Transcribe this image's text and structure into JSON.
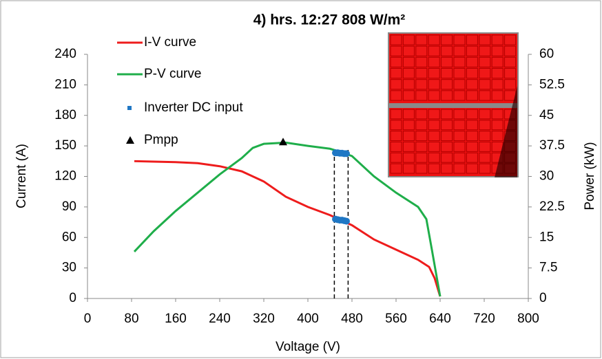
{
  "chart_data": {
    "type": "line",
    "title": "4) hrs. 12:27  808 W/m²",
    "x_label": "Voltage (V)",
    "y_label": "Current (A)",
    "y2_label": "Power (kW)",
    "xlim": [
      0,
      800
    ],
    "xticks": [
      0,
      80,
      160,
      240,
      320,
      400,
      480,
      560,
      640,
      720,
      800
    ],
    "ylim": [
      0,
      240
    ],
    "yticks": [
      0,
      30,
      60,
      90,
      120,
      150,
      180,
      210,
      240
    ],
    "y2lim": [
      0,
      60
    ],
    "y2ticks": [
      0,
      7.5,
      15,
      22.5,
      30,
      37.5,
      45,
      52.5,
      60
    ],
    "series": [
      {
        "name": "I-V curve",
        "color": "#ee1c1c",
        "type": "line",
        "x": [
          85,
          120,
          160,
          200,
          240,
          280,
          320,
          360,
          400,
          440,
          460,
          480,
          520,
          560,
          600,
          620,
          630,
          640
        ],
        "values": [
          135,
          134.5,
          134,
          133,
          130,
          125,
          115,
          100,
          90,
          82,
          77,
          72,
          58,
          48,
          38,
          31,
          20,
          2
        ]
      },
      {
        "name": "P-V curve",
        "color": "#1fae4a",
        "type": "line",
        "axis": "y2",
        "x": [
          85,
          120,
          160,
          200,
          240,
          280,
          300,
          320,
          360,
          400,
          440,
          460,
          480,
          520,
          560,
          600,
          615,
          625,
          640
        ],
        "values": [
          11.5,
          16.5,
          21.5,
          26,
          30.5,
          34.5,
          37,
          38,
          38.3,
          37.5,
          36.8,
          36,
          35,
          30,
          26,
          22.5,
          19.5,
          12,
          0.5
        ]
      },
      {
        "name": "Inverter DC input",
        "color": "#1f77c4",
        "type": "scatter",
        "x": [
          450,
          454,
          458,
          462,
          466,
          470
        ],
        "values": [
          78,
          77.5,
          77,
          77,
          76.5,
          76
        ],
        "power_values": [
          35.8,
          35.8,
          35.7,
          35.7,
          35.6,
          35.6
        ]
      },
      {
        "name": "Pmpp",
        "color": "#000000",
        "type": "marker",
        "axis": "y2",
        "x": [
          355
        ],
        "values": [
          38.5
        ]
      }
    ],
    "vlines": [
      448,
      473
    ],
    "vline_top": 37
  }
}
